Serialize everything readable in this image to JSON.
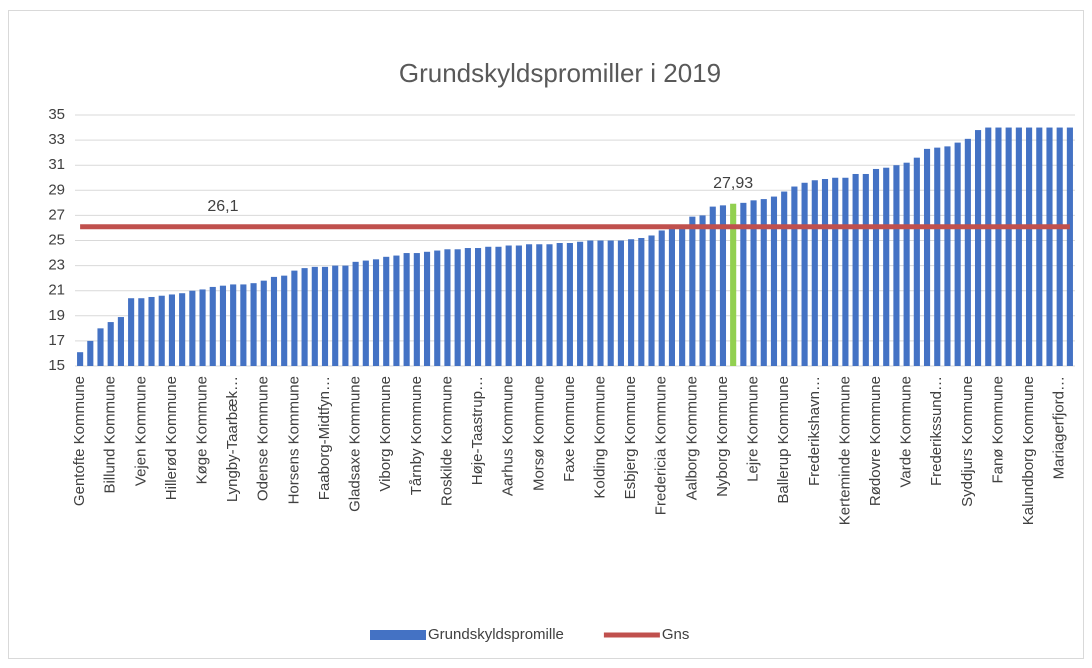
{
  "chart_data": {
    "type": "bar",
    "title": "Grundskyldspromiller i 2019",
    "categories": [
      "Gentofte Kommune",
      null,
      null,
      "Billund Kommune",
      null,
      null,
      "Vejen Kommune",
      null,
      null,
      "Hillerød Kommune",
      null,
      null,
      "Køge Kommune",
      null,
      null,
      "Lyngby-Taarbæk…",
      null,
      null,
      "Odense Kommune",
      null,
      null,
      "Horsens Kommune",
      null,
      null,
      "Faaborg-Midtfyn…",
      null,
      null,
      "Gladsaxe Kommune",
      null,
      null,
      "Viborg Kommune",
      null,
      null,
      "Tårnby Kommune",
      null,
      null,
      "Roskilde Kommune",
      null,
      null,
      "Høje-Taastrup…",
      null,
      null,
      "Aarhus Kommune",
      null,
      null,
      "Morsø Kommune",
      null,
      null,
      "Faxe Kommune",
      null,
      null,
      "Kolding Kommune",
      null,
      null,
      "Esbjerg Kommune",
      null,
      null,
      "Fredericia Kommune",
      null,
      null,
      "Aalborg Kommune",
      null,
      null,
      "Nyborg Kommune",
      null,
      null,
      "Lejre Kommune",
      null,
      null,
      "Ballerup Kommune",
      null,
      null,
      "Frederikshavn…",
      null,
      null,
      "Kerteminde Kommune",
      null,
      null,
      "Rødovre Kommune",
      null,
      null,
      "Varde Kommune",
      null,
      null,
      "Frederikssund…",
      null,
      null,
      "Syddjurs Kommune",
      null,
      null,
      "Fanø Kommune",
      null,
      null,
      "Kalundborg Kommune",
      null,
      null,
      "Mariagerfjord…",
      null
    ],
    "series": [
      {
        "name": "Grundskyldspromille",
        "color": "#4472c4",
        "values": [
          16.1,
          17.0,
          18.0,
          18.5,
          18.9,
          20.4,
          20.4,
          20.5,
          20.6,
          20.7,
          20.8,
          21.0,
          21.1,
          21.3,
          21.4,
          21.5,
          21.5,
          21.6,
          21.8,
          22.1,
          22.2,
          22.6,
          22.8,
          22.9,
          22.9,
          23.0,
          23.0,
          23.3,
          23.4,
          23.5,
          23.7,
          23.8,
          24.0,
          24.0,
          24.1,
          24.2,
          24.3,
          24.3,
          24.4,
          24.4,
          24.5,
          24.5,
          24.6,
          24.6,
          24.7,
          24.7,
          24.7,
          24.8,
          24.8,
          24.9,
          25.0,
          25.0,
          25.0,
          25.0,
          25.1,
          25.2,
          25.4,
          25.8,
          26.0,
          26.1,
          26.9,
          27.0,
          27.7,
          27.8,
          27.93,
          28.0,
          28.2,
          28.3,
          28.5,
          28.9,
          29.3,
          29.6,
          29.8,
          29.9,
          30.0,
          30.0,
          30.3,
          30.3,
          30.7,
          30.8,
          31.0,
          31.2,
          31.6,
          32.3,
          32.4,
          32.5,
          32.8,
          33.1,
          33.8,
          34.0,
          34.0,
          34.0,
          34.0,
          34.0,
          34.0,
          34.0,
          34.0,
          34.0
        ],
        "colors": [
          "#4472c4",
          "#4472c4",
          "#4472c4",
          "#4472c4",
          "#4472c4",
          "#4472c4",
          "#4472c4",
          "#4472c4",
          "#4472c4",
          "#4472c4",
          "#4472c4",
          "#4472c4",
          "#4472c4",
          "#4472c4",
          "#4472c4",
          "#4472c4",
          "#4472c4",
          "#4472c4",
          "#4472c4",
          "#4472c4",
          "#4472c4",
          "#4472c4",
          "#4472c4",
          "#4472c4",
          "#4472c4",
          "#4472c4",
          "#4472c4",
          "#4472c4",
          "#4472c4",
          "#4472c4",
          "#4472c4",
          "#4472c4",
          "#4472c4",
          "#4472c4",
          "#4472c4",
          "#4472c4",
          "#4472c4",
          "#4472c4",
          "#4472c4",
          "#4472c4",
          "#4472c4",
          "#4472c4",
          "#4472c4",
          "#4472c4",
          "#4472c4",
          "#4472c4",
          "#4472c4",
          "#4472c4",
          "#4472c4",
          "#4472c4",
          "#4472c4",
          "#4472c4",
          "#4472c4",
          "#4472c4",
          "#4472c4",
          "#4472c4",
          "#4472c4",
          "#4472c4",
          "#4472c4",
          "#4472c4",
          "#4472c4",
          "#4472c4",
          "#4472c4",
          "#4472c4",
          "#92d050",
          "#4472c4",
          "#4472c4",
          "#4472c4",
          "#4472c4",
          "#4472c4",
          "#4472c4",
          "#4472c4",
          "#4472c4",
          "#4472c4",
          "#4472c4",
          "#4472c4",
          "#4472c4",
          "#4472c4",
          "#4472c4",
          "#4472c4",
          "#4472c4",
          "#4472c4",
          "#4472c4",
          "#4472c4",
          "#4472c4",
          "#4472c4",
          "#4472c4",
          "#4472c4",
          "#4472c4",
          "#4472c4",
          "#4472c4",
          "#4472c4",
          "#4472c4",
          "#4472c4",
          "#4472c4",
          "#4472c4",
          "#4472c4",
          "#4472c4"
        ],
        "value_labels": [
          null,
          null,
          null,
          null,
          null,
          null,
          null,
          null,
          null,
          null,
          null,
          null,
          null,
          null,
          null,
          null,
          null,
          null,
          null,
          null,
          null,
          null,
          null,
          null,
          null,
          null,
          null,
          null,
          null,
          null,
          null,
          null,
          null,
          null,
          null,
          null,
          null,
          null,
          null,
          null,
          null,
          null,
          null,
          null,
          null,
          null,
          null,
          null,
          null,
          null,
          null,
          null,
          null,
          null,
          null,
          null,
          null,
          null,
          null,
          null,
          null,
          null,
          null,
          null,
          "27,93",
          null,
          null,
          null,
          null,
          null,
          null,
          null,
          null,
          null,
          null,
          null,
          null,
          null,
          null,
          null,
          null,
          null,
          null,
          null,
          null,
          null,
          null,
          null,
          null,
          null,
          null,
          null,
          null,
          null,
          null,
          null,
          null,
          null
        ]
      },
      {
        "name": "Gns",
        "type": "line",
        "color": "#c0504d",
        "values": [
          26.1,
          26.1,
          26.1,
          26.1,
          26.1,
          26.1,
          26.1,
          26.1,
          26.1,
          26.1,
          26.1,
          26.1,
          26.1,
          26.1,
          26.1,
          26.1,
          26.1,
          26.1,
          26.1,
          26.1,
          26.1,
          26.1,
          26.1,
          26.1,
          26.1,
          26.1,
          26.1,
          26.1,
          26.1,
          26.1,
          26.1,
          26.1,
          26.1,
          26.1,
          26.1,
          26.1,
          26.1,
          26.1,
          26.1,
          26.1,
          26.1,
          26.1,
          26.1,
          26.1,
          26.1,
          26.1,
          26.1,
          26.1,
          26.1,
          26.1,
          26.1,
          26.1,
          26.1,
          26.1,
          26.1,
          26.1,
          26.1,
          26.1,
          26.1,
          26.1,
          26.1,
          26.1,
          26.1,
          26.1,
          26.1,
          26.1,
          26.1,
          26.1,
          26.1,
          26.1,
          26.1,
          26.1,
          26.1,
          26.1,
          26.1,
          26.1,
          26.1,
          26.1,
          26.1,
          26.1,
          26.1,
          26.1,
          26.1,
          26.1,
          26.1,
          26.1,
          26.1,
          26.1,
          26.1,
          26.1,
          26.1,
          26.1,
          26.1,
          26.1,
          26.1,
          26.1,
          26.1,
          26.1
        ],
        "value_labels": [
          null,
          null,
          null,
          null,
          null,
          null,
          null,
          null,
          null,
          null,
          null,
          null,
          null,
          null,
          "26,1",
          null,
          null,
          null,
          null,
          null,
          null,
          null,
          null,
          null,
          null,
          null,
          null,
          null,
          null,
          null,
          null,
          null,
          null,
          null,
          null,
          null,
          null,
          null,
          null,
          null,
          null,
          null,
          null,
          null,
          null,
          null,
          null,
          null,
          null,
          null,
          null,
          null,
          null,
          null,
          null,
          null,
          null,
          null,
          null,
          null,
          null,
          null,
          null,
          null,
          null,
          null,
          null,
          null,
          null,
          null,
          null,
          null,
          null,
          null,
          null,
          null,
          null,
          null,
          null,
          null,
          null,
          null,
          null,
          null,
          null,
          null,
          null,
          null,
          null,
          null,
          null,
          null,
          null,
          null,
          null,
          null,
          null,
          null
        ]
      }
    ],
    "ylim": [
      15,
      35
    ],
    "yticks": [
      15,
      17,
      19,
      21,
      23,
      25,
      27,
      29,
      31,
      33,
      35
    ],
    "grid": true,
    "legend": "bottom"
  }
}
